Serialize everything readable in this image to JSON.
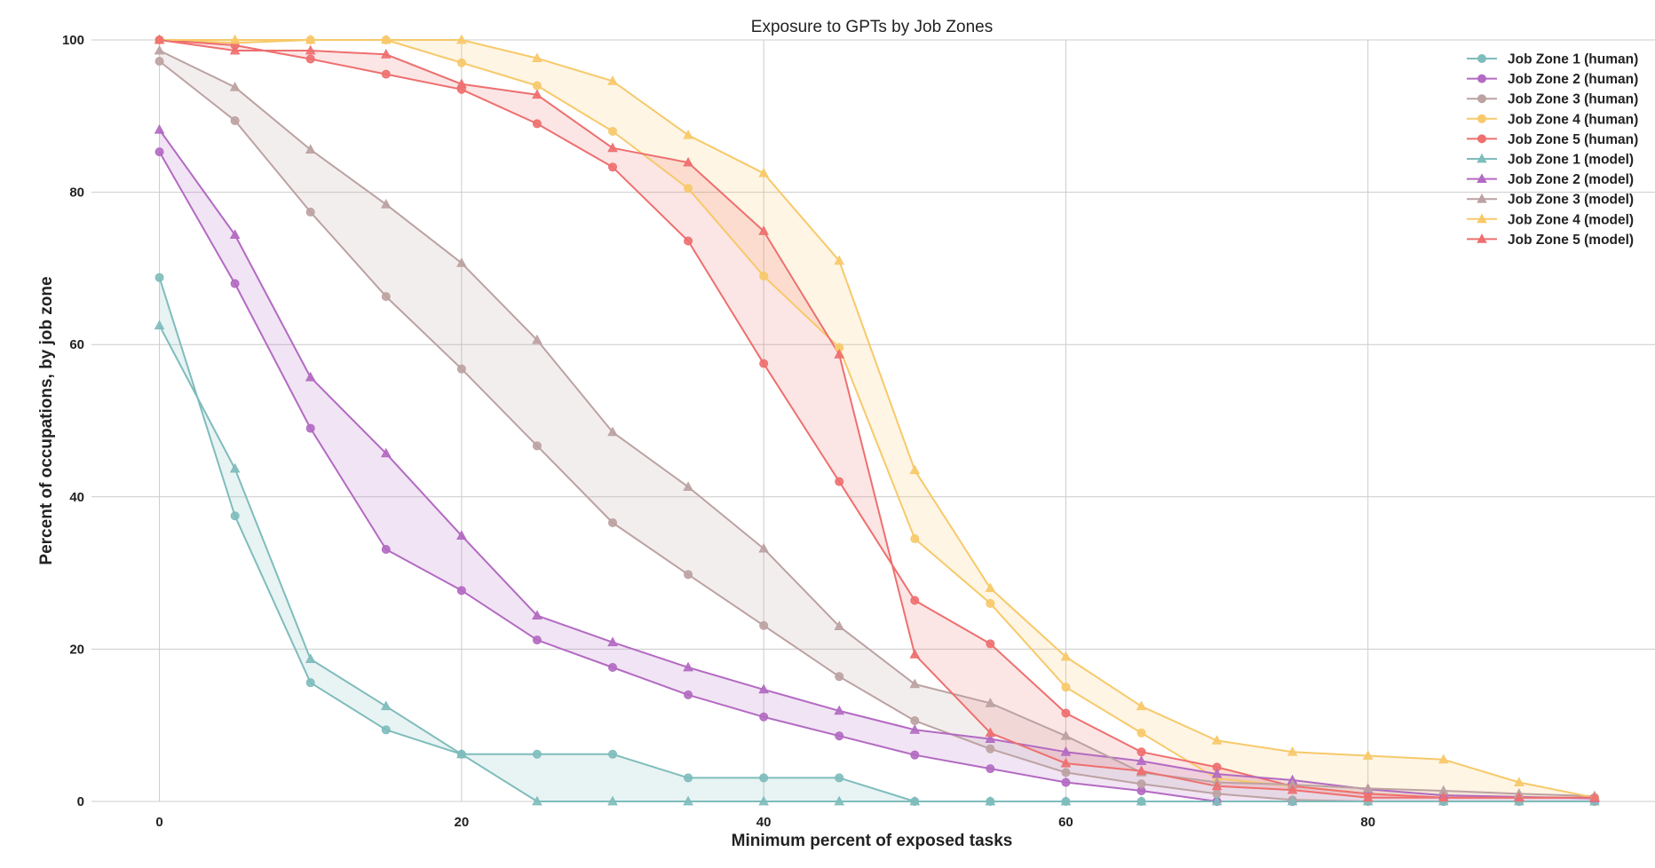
{
  "chart_data": {
    "type": "line",
    "title": "Exposure to GPTs by Job Zones",
    "xlabel": "Minimum percent of exposed tasks",
    "ylabel": "Percent of occupations, by job zone",
    "xlim": [
      -4.5,
      99
    ],
    "ylim": [
      0,
      100
    ],
    "xticks": [
      0,
      20,
      40,
      60,
      80
    ],
    "yticks": [
      0,
      20,
      40,
      60,
      80,
      100
    ],
    "grid": true,
    "legend_position": "top-right",
    "x": [
      0,
      5,
      10,
      15,
      20,
      25,
      30,
      35,
      40,
      45,
      50,
      55,
      60,
      65,
      70,
      75,
      80,
      85,
      90,
      95
    ],
    "series": [
      {
        "name": "Job Zone 1 (human)",
        "marker": "circle",
        "color": "#7fbcbc",
        "values": [
          68.8,
          37.5,
          15.6,
          9.4,
          6.2,
          6.2,
          6.2,
          3.1,
          3.1,
          3.1,
          0,
          0,
          0,
          0,
          0,
          0,
          0,
          0,
          0,
          0
        ]
      },
      {
        "name": "Job Zone 2 (human)",
        "marker": "circle",
        "color": "#b36ac2",
        "values": [
          85.3,
          68.0,
          49.0,
          33.1,
          27.7,
          21.2,
          17.6,
          14.0,
          11.1,
          8.6,
          6.1,
          4.3,
          2.5,
          1.4,
          0,
          0,
          0,
          0,
          0,
          0
        ]
      },
      {
        "name": "Job Zone 3 (human)",
        "marker": "circle",
        "color": "#bca2a2",
        "values": [
          97.2,
          89.4,
          77.4,
          66.3,
          56.8,
          46.7,
          36.6,
          29.8,
          23.1,
          16.4,
          10.6,
          6.9,
          3.8,
          2.3,
          1.0,
          0.2,
          0,
          0,
          0,
          0
        ]
      },
      {
        "name": "Job Zone 4 (human)",
        "marker": "circle",
        "color": "#f7c96a",
        "values": [
          100,
          99.6,
          100,
          100,
          97.0,
          94.0,
          88.0,
          80.5,
          69.0,
          59.6,
          34.5,
          26.0,
          15.0,
          9.0,
          3.0,
          2.0,
          1.0,
          0.5,
          0.5,
          0.5
        ]
      },
      {
        "name": "Job Zone 5 (human)",
        "marker": "circle",
        "color": "#ee6f6f",
        "values": [
          100,
          99.3,
          97.5,
          95.5,
          93.5,
          89.0,
          83.3,
          73.6,
          57.5,
          42.0,
          26.4,
          20.7,
          11.6,
          6.5,
          4.5,
          2.0,
          1.0,
          0.5,
          0.5,
          0.5
        ]
      },
      {
        "name": "Job Zone 1 (model)",
        "marker": "triangle",
        "color": "#7fbcbc",
        "values": [
          62.5,
          43.7,
          18.7,
          12.5,
          6.2,
          0,
          0,
          0,
          0,
          0,
          0,
          0,
          0,
          0,
          0,
          0,
          0,
          0,
          0,
          0
        ]
      },
      {
        "name": "Job Zone 2 (model)",
        "marker": "triangle",
        "color": "#b36ac2",
        "values": [
          88.2,
          74.4,
          55.7,
          45.7,
          34.9,
          24.4,
          20.9,
          17.6,
          14.7,
          11.9,
          9.4,
          8.2,
          6.5,
          5.3,
          3.6,
          2.8,
          1.6,
          0.8,
          0.6,
          0.4
        ]
      },
      {
        "name": "Job Zone 3 (model)",
        "marker": "triangle",
        "color": "#bca2a2",
        "values": [
          98.6,
          93.8,
          85.6,
          78.4,
          70.7,
          60.6,
          48.5,
          41.3,
          33.2,
          23.0,
          15.4,
          12.9,
          8.6,
          3.8,
          2.5,
          2.2,
          1.7,
          1.4,
          1.0,
          0.7
        ]
      },
      {
        "name": "Job Zone 4 (model)",
        "marker": "triangle",
        "color": "#f7c96a",
        "values": [
          100,
          100,
          100,
          100,
          100,
          97.6,
          94.6,
          87.5,
          82.5,
          71.0,
          43.5,
          28.0,
          19.0,
          12.5,
          8.0,
          6.5,
          6.0,
          5.5,
          2.5,
          0.5
        ]
      },
      {
        "name": "Job Zone 5 (model)",
        "marker": "triangle",
        "color": "#ee6f6f",
        "values": [
          100,
          98.6,
          98.6,
          98.1,
          94.2,
          92.8,
          85.8,
          83.9,
          74.9,
          58.7,
          19.3,
          9.0,
          5.0,
          4.0,
          2.0,
          1.5,
          0.5,
          0.5,
          0.5,
          0.5
        ]
      }
    ]
  }
}
